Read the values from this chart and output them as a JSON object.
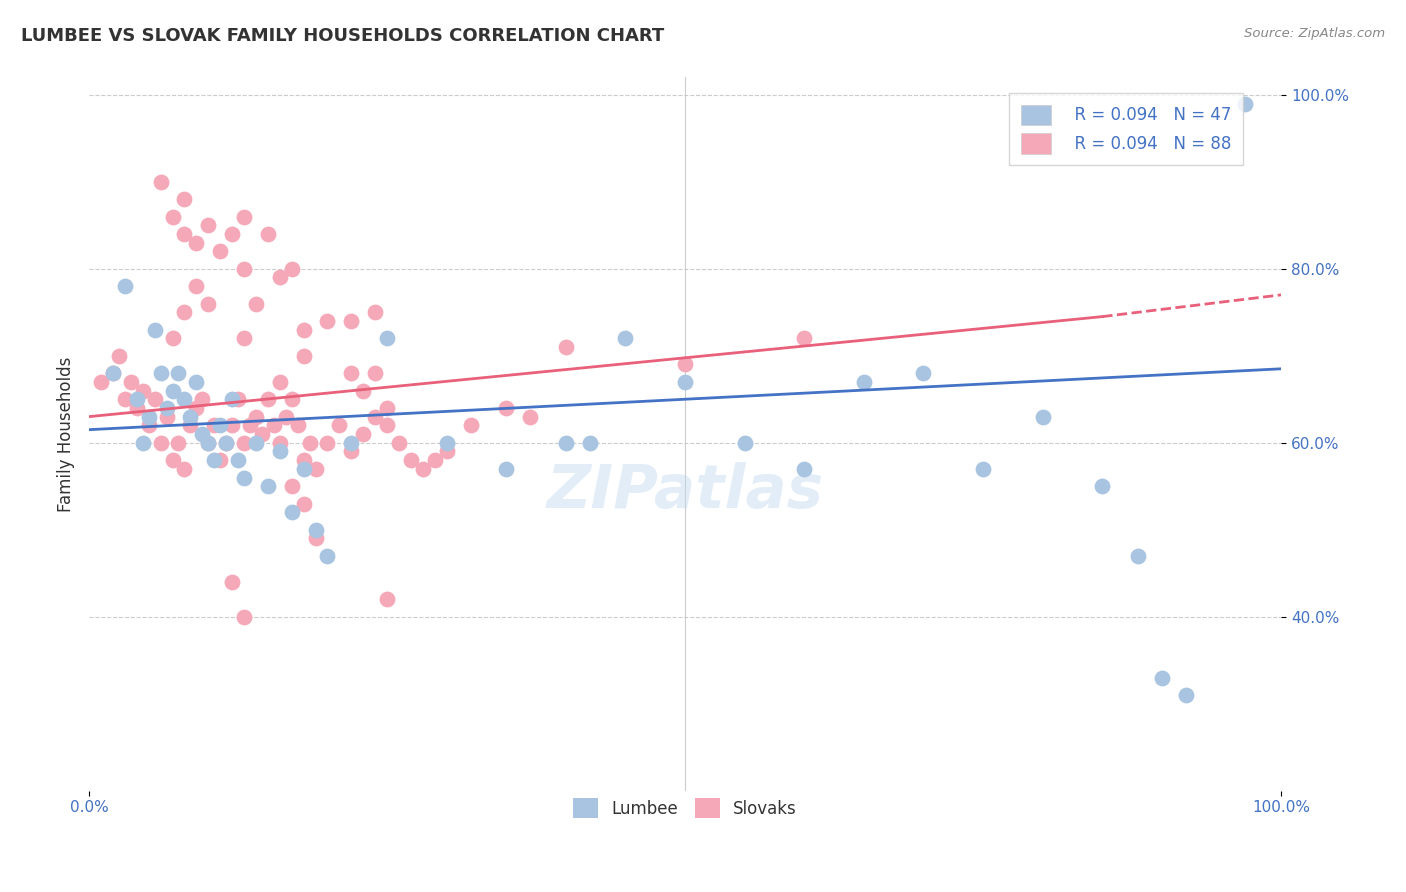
{
  "title": "LUMBEE VS SLOVAK FAMILY HOUSEHOLDS CORRELATION CHART",
  "source": "Source: ZipAtlas.com",
  "ylabel": "Family Households",
  "xlim": [
    0,
    1
  ],
  "ylim": [
    0.2,
    1.02
  ],
  "lumbee_color": "#a8c4e0",
  "slovak_color": "#f4a8b8",
  "line_blue": "#4472c4",
  "line_pink": "#e8607a",
  "watermark": "ZIPatlas",
  "legend_r1": "R = 0.094",
  "legend_n1": "N = 47",
  "legend_r2": "R = 0.094",
  "legend_n2": "N = 88",
  "lumbee_x": [
    0.02,
    0.03,
    0.04,
    0.045,
    0.05,
    0.055,
    0.06,
    0.065,
    0.07,
    0.075,
    0.08,
    0.085,
    0.09,
    0.095,
    0.1,
    0.105,
    0.11,
    0.115,
    0.12,
    0.125,
    0.13,
    0.14,
    0.15,
    0.16,
    0.17,
    0.18,
    0.19,
    0.2,
    0.22,
    0.25,
    0.3,
    0.35,
    0.4,
    0.42,
    0.45,
    0.5,
    0.55,
    0.6,
    0.65,
    0.7,
    0.75,
    0.8,
    0.85,
    0.88,
    0.9,
    0.92,
    0.97
  ],
  "lumbee_y": [
    0.68,
    0.78,
    0.65,
    0.6,
    0.63,
    0.73,
    0.68,
    0.64,
    0.66,
    0.68,
    0.65,
    0.63,
    0.67,
    0.61,
    0.6,
    0.58,
    0.62,
    0.6,
    0.65,
    0.58,
    0.56,
    0.6,
    0.55,
    0.59,
    0.52,
    0.57,
    0.5,
    0.47,
    0.6,
    0.72,
    0.6,
    0.57,
    0.6,
    0.6,
    0.72,
    0.67,
    0.6,
    0.57,
    0.67,
    0.68,
    0.57,
    0.63,
    0.55,
    0.47,
    0.33,
    0.31,
    0.99
  ],
  "slovak_x": [
    0.01,
    0.02,
    0.025,
    0.03,
    0.035,
    0.04,
    0.045,
    0.05,
    0.055,
    0.06,
    0.065,
    0.07,
    0.075,
    0.08,
    0.085,
    0.09,
    0.095,
    0.1,
    0.105,
    0.11,
    0.115,
    0.12,
    0.125,
    0.13,
    0.135,
    0.14,
    0.145,
    0.15,
    0.155,
    0.16,
    0.165,
    0.17,
    0.175,
    0.18,
    0.185,
    0.19,
    0.2,
    0.21,
    0.22,
    0.23,
    0.24,
    0.25,
    0.26,
    0.27,
    0.28,
    0.29,
    0.3,
    0.32,
    0.35,
    0.37,
    0.4,
    0.13,
    0.14,
    0.16,
    0.18,
    0.2,
    0.22,
    0.24,
    0.13,
    0.15,
    0.17,
    0.06,
    0.07,
    0.08,
    0.08,
    0.09,
    0.1,
    0.11,
    0.12,
    0.13,
    0.07,
    0.08,
    0.09,
    0.1,
    0.16,
    0.18,
    0.22,
    0.23,
    0.24,
    0.25,
    0.17,
    0.18,
    0.19,
    0.25,
    0.5,
    0.6,
    0.12,
    0.13
  ],
  "slovak_y": [
    0.67,
    0.68,
    0.7,
    0.65,
    0.67,
    0.64,
    0.66,
    0.62,
    0.65,
    0.6,
    0.63,
    0.58,
    0.6,
    0.57,
    0.62,
    0.64,
    0.65,
    0.6,
    0.62,
    0.58,
    0.6,
    0.62,
    0.65,
    0.6,
    0.62,
    0.63,
    0.61,
    0.65,
    0.62,
    0.6,
    0.63,
    0.65,
    0.62,
    0.58,
    0.6,
    0.57,
    0.6,
    0.62,
    0.59,
    0.61,
    0.63,
    0.62,
    0.6,
    0.58,
    0.57,
    0.58,
    0.59,
    0.62,
    0.64,
    0.63,
    0.71,
    0.72,
    0.76,
    0.79,
    0.73,
    0.74,
    0.74,
    0.75,
    0.86,
    0.84,
    0.8,
    0.9,
    0.86,
    0.84,
    0.88,
    0.83,
    0.85,
    0.82,
    0.84,
    0.8,
    0.72,
    0.75,
    0.78,
    0.76,
    0.67,
    0.7,
    0.68,
    0.66,
    0.68,
    0.64,
    0.55,
    0.53,
    0.49,
    0.42,
    0.69,
    0.72,
    0.44,
    0.4
  ],
  "line_blue_x0": 0.0,
  "line_blue_y0": 0.615,
  "line_blue_x1": 1.0,
  "line_blue_y1": 0.685,
  "line_pink_x0": 0.0,
  "line_pink_y0": 0.63,
  "line_pink_x1": 0.85,
  "line_pink_y1": 0.745,
  "line_pink_dash_x0": 0.85,
  "line_pink_dash_y0": 0.745,
  "line_pink_dash_x1": 1.0,
  "line_pink_dash_y1": 0.77
}
